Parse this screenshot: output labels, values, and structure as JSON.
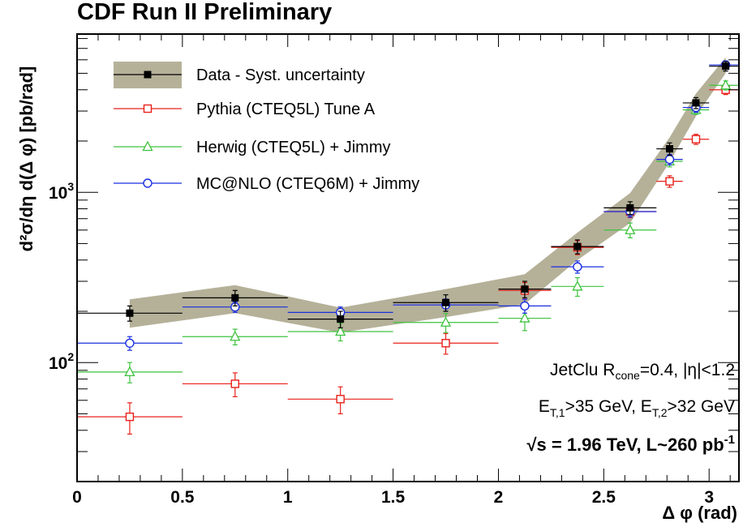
{
  "chart_data": {
    "type": "scatter",
    "title": "CDF Run II Preliminary",
    "xlabel": "Δ φ (rad)",
    "ylabel": "d²σ/dη d(Δ φ) [pb/rad]",
    "xlim": [
      0,
      3.1416
    ],
    "ylim": [
      20,
      8500
    ],
    "yscale": "log",
    "x_ticks": [
      "0",
      "0.5",
      "1",
      "1.5",
      "2",
      "2.5",
      "3"
    ],
    "y_tick_labels": [
      {
        "base": "10",
        "exp": "2",
        "value": 100
      },
      {
        "base": "10",
        "exp": "3",
        "value": 1000
      }
    ],
    "legend_position": "top-left",
    "annotations": {
      "line1_a": "JetClu R",
      "line1_sub": "cone",
      "line1_b": "=0.4, |η|<1.2",
      "line2_a": "E",
      "line2_sub1": "T,1",
      "line2_b": ">35 GeV, E",
      "line2_sub2": "T,2",
      "line2_c": ">32 GeV",
      "line3_a": "√s = 1.96 TeV, L~260 pb",
      "line3_sup": "-1"
    },
    "band": {
      "name": "Data - Syst. uncertainty",
      "color": "#b5b199",
      "x": [
        0.25,
        0.75,
        1.25,
        1.75,
        2.125,
        2.375,
        2.625,
        2.8125,
        2.9375,
        3.0786
      ],
      "lo": [
        160,
        195,
        150,
        185,
        220,
        400,
        660,
        1500,
        2800,
        5000
      ],
      "hi": [
        235,
        285,
        210,
        270,
        330,
        580,
        990,
        2100,
        3800,
        6200
      ]
    },
    "series": [
      {
        "name": "Data - Syst. uncertainty",
        "color": "#000000",
        "marker": "filled-square",
        "x": [
          0.25,
          0.75,
          1.25,
          1.75,
          2.125,
          2.375,
          2.625,
          2.8125,
          2.9375,
          3.0786
        ],
        "xerr": [
          0.25,
          0.25,
          0.25,
          0.25,
          0.125,
          0.125,
          0.125,
          0.0625,
          0.0625,
          0.0786
        ],
        "y": [
          195,
          240,
          180,
          225,
          270,
          480,
          810,
          1800,
          3350,
          5500
        ],
        "yerr": [
          20,
          25,
          20,
          25,
          30,
          45,
          70,
          150,
          250,
          350
        ]
      },
      {
        "name": "Pythia (CTEQ5L) Tune A",
        "color": "#e8201a",
        "marker": "open-square",
        "x": [
          0.25,
          0.75,
          1.25,
          1.75,
          2.125,
          2.375,
          2.625,
          2.8125,
          2.9375,
          3.0786
        ],
        "xerr": [
          0.25,
          0.25,
          0.25,
          0.25,
          0.125,
          0.125,
          0.125,
          0.0625,
          0.0625,
          0.0786
        ],
        "y": [
          48,
          75,
          61,
          130,
          265,
          475,
          770,
          1160,
          2050,
          4000
        ],
        "yerr": [
          10,
          12,
          11,
          18,
          30,
          45,
          60,
          90,
          140,
          250
        ]
      },
      {
        "name": "Herwig (CTEQ5L) + Jimmy",
        "color": "#3ec23e",
        "marker": "open-triangle",
        "x": [
          0.25,
          0.75,
          1.25,
          1.75,
          2.125,
          2.375,
          2.625,
          2.8125,
          2.9375,
          3.0786
        ],
        "xerr": [
          0.25,
          0.25,
          0.25,
          0.25,
          0.125,
          0.125,
          0.125,
          0.0625,
          0.0625,
          0.0786
        ],
        "y": [
          88,
          142,
          152,
          172,
          182,
          280,
          600,
          1520,
          3050,
          4250
        ],
        "yerr": [
          12,
          15,
          18,
          22,
          28,
          35,
          60,
          110,
          180,
          260
        ]
      },
      {
        "name": "MC@NLO (CTEQ6M) + Jimmy",
        "color": "#1a2ee0",
        "marker": "open-circle",
        "x": [
          0.25,
          0.75,
          1.25,
          1.75,
          2.125,
          2.375,
          2.625,
          2.8125,
          2.9375,
          3.0786
        ],
        "xerr": [
          0.25,
          0.25,
          0.25,
          0.25,
          0.125,
          0.125,
          0.125,
          0.0625,
          0.0625,
          0.0786
        ],
        "y": [
          130,
          212,
          197,
          218,
          215,
          365,
          770,
          1560,
          3150,
          5600
        ],
        "yerr": [
          12,
          15,
          15,
          18,
          20,
          30,
          55,
          110,
          200,
          300
        ]
      }
    ]
  }
}
